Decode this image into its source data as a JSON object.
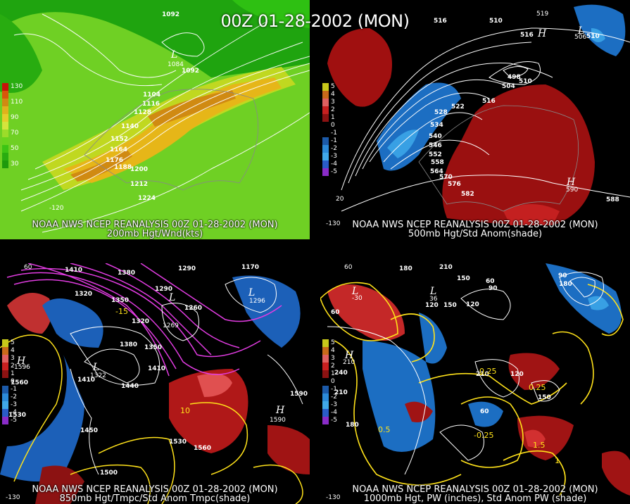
{
  "title": "00Z 01-28-2002 (MON)",
  "colors": {
    "green_bg": "#1fa40f",
    "white": "#ffffff",
    "yellow": "#ffe21a",
    "magenta": "#e23ce2",
    "red": "#b3140c",
    "blue": "#1c6ec2"
  },
  "panels": [
    {
      "id": "p1",
      "caption_line1": "NOAA NWS NCEP REANALYSIS 00Z 01-28-2002 (MON)",
      "caption_line2": "200mb Hgt/Wnd(kts)",
      "legend": [
        {
          "label": "130",
          "color": "#c8140a"
        },
        {
          "label": "",
          "color": "#d8560a"
        },
        {
          "label": "110",
          "color": "#d08a12"
        },
        {
          "label": "",
          "color": "#e0b21c"
        },
        {
          "label": "90",
          "color": "#e6cc2a"
        },
        {
          "label": "",
          "color": "#d4e43c"
        },
        {
          "label": "70",
          "color": "#9cdc2a"
        },
        {
          "label": "",
          "color": "#6ad41e"
        },
        {
          "label": "50",
          "color": "#3cc414"
        },
        {
          "label": "",
          "color": "#28ac10"
        },
        {
          "label": "30",
          "color": "#1e9a0c"
        }
      ],
      "contour_labels": [
        "1092",
        "1092",
        "1104",
        "1116",
        "1128",
        "1140",
        "1152",
        "1164",
        "1176",
        "1188",
        "1200",
        "1212",
        "1224"
      ],
      "lows": [
        {
          "symbol": "L",
          "value": "1084"
        }
      ],
      "axis": {
        "lon_left": "-120"
      }
    },
    {
      "id": "p2",
      "caption_line1": "NOAA NWS NCEP REANALYSIS 00Z 01-28-2002 (MON)",
      "caption_line2": "500mb Hgt/Std Anom(shade)",
      "legend": [
        {
          "label": "5",
          "color": "#c8c81a"
        },
        {
          "label": "4",
          "color": "#c86a1a"
        },
        {
          "label": "3",
          "color": "#e06060"
        },
        {
          "label": "2",
          "color": "#c82020"
        },
        {
          "label": "1",
          "color": "#8c1212"
        },
        {
          "label": "0",
          "color": "#000000"
        },
        {
          "label": "-1",
          "color": "#000000"
        },
        {
          "label": "-1",
          "color": "#1c5aa8"
        },
        {
          "label": "-2",
          "color": "#2c8ad8"
        },
        {
          "label": "-3",
          "color": "#40a8e8"
        },
        {
          "label": "-4",
          "color": "#2a5cc8"
        },
        {
          "label": "-5",
          "color": "#8a2cc8"
        }
      ],
      "contour_labels": [
        "516",
        "510",
        "516",
        "510",
        "498",
        "504",
        "510",
        "516",
        "522",
        "528",
        "534",
        "540",
        "546",
        "552",
        "558",
        "564",
        "570",
        "576",
        "582",
        "588"
      ],
      "highs": [
        {
          "symbol": "H",
          "value": "519"
        },
        {
          "symbol": "H",
          "value": "590"
        }
      ],
      "lows": [
        {
          "symbol": "L",
          "value": "506"
        }
      ],
      "axis": {
        "lon_left": "-130",
        "lat": "20"
      }
    },
    {
      "id": "p3",
      "caption_line1": "NOAA NWS NCEP REANALYSIS 00Z 01-28-2002 (MON)",
      "caption_line2": "850mb Hgt/Tmpc/Std Anom Tmpc(shade)",
      "legend": [
        {
          "label": "5",
          "color": "#c8c81a"
        },
        {
          "label": "4",
          "color": "#c86a1a"
        },
        {
          "label": "3",
          "color": "#e06060"
        },
        {
          "label": "2",
          "color": "#c82020"
        },
        {
          "label": "1",
          "color": "#8c1212"
        },
        {
          "label": "0",
          "color": "#000000"
        },
        {
          "label": "-1",
          "color": "#1c5aa8"
        },
        {
          "label": "-2",
          "color": "#2c8ad8"
        },
        {
          "label": "-3",
          "color": "#40a8e8"
        },
        {
          "label": "-4",
          "color": "#2a5cc8"
        },
        {
          "label": "-5",
          "color": "#8a2cc8"
        }
      ],
      "contour_labels": [
        "1410",
        "1380",
        "1320",
        "1350",
        "1290",
        "1290",
        "1170",
        "1320",
        "1260",
        "1380",
        "1350",
        "1410",
        "1410",
        "1440",
        "1560",
        "1530",
        "1590",
        "1450",
        "1530",
        "1560",
        "1500",
        "-15",
        "10"
      ],
      "highs": [
        {
          "symbol": "H",
          "value": "1590"
        },
        {
          "symbol": "H",
          "value": "1596"
        }
      ],
      "lows": [
        {
          "symbol": "L",
          "value": "1269"
        },
        {
          "symbol": "L",
          "value": "1296"
        },
        {
          "symbol": "L",
          "value": "1322"
        }
      ],
      "axis": {
        "lat": "60",
        "lon_left": "-130"
      }
    },
    {
      "id": "p4",
      "caption_line1": "NOAA NWS NCEP REANALYSIS 00Z 01-28-2002 (MON)",
      "caption_line2": "1000mb Hgt, PW (inches), Std Anom PW (shade)",
      "legend": [
        {
          "label": "5",
          "color": "#c8c81a"
        },
        {
          "label": "4",
          "color": "#c86a1a"
        },
        {
          "label": "3",
          "color": "#e06060"
        },
        {
          "label": "2",
          "color": "#c82020"
        },
        {
          "label": "1",
          "color": "#8c1212"
        },
        {
          "label": "0",
          "color": "#000000"
        },
        {
          "label": "-1",
          "color": "#1c5aa8"
        },
        {
          "label": "-2",
          "color": "#2c8ad8"
        },
        {
          "label": "-3",
          "color": "#40a8e8"
        },
        {
          "label": "-4",
          "color": "#2a5cc8"
        },
        {
          "label": "-5",
          "color": "#8a2cc8"
        }
      ],
      "contour_labels": [
        "210",
        "150",
        "60",
        "90",
        "120",
        "150",
        "180",
        "60",
        "120",
        "240",
        "210",
        "180",
        "210",
        "120",
        "150",
        "90",
        "60",
        "180",
        "0.5",
        "0.25",
        "0.25",
        "-0.25",
        "1.5",
        "1"
      ],
      "highs": [
        {
          "symbol": "H",
          "value": "210"
        }
      ],
      "lows": [
        {
          "symbol": "L",
          "value": "36"
        },
        {
          "symbol": "L",
          "value": "-30"
        }
      ],
      "axis": {
        "lat": "60",
        "lon_left": "-130"
      }
    }
  ]
}
